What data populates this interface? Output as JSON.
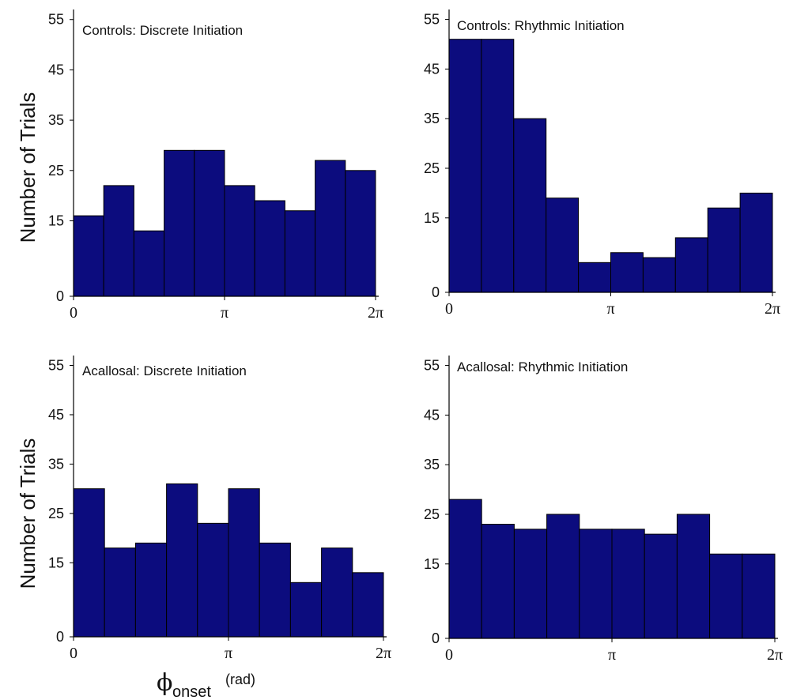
{
  "colors": {
    "bar_fill": "#0c0c7e",
    "bar_stroke": "#000000",
    "axis": "#000000"
  },
  "y_axis_label": "Number of Trials",
  "x_axis_label": {
    "symbol": "ϕ",
    "subscript": "onset",
    "unit": "(rad)"
  },
  "chart_data": [
    {
      "type": "bar",
      "title": "Controls: Discrete Initiation",
      "categories": [
        "1",
        "2",
        "3",
        "4",
        "5",
        "6",
        "7",
        "8",
        "9",
        "10"
      ],
      "values": [
        16,
        22,
        13,
        29,
        29,
        22,
        19,
        17,
        27,
        25
      ],
      "ylim": [
        0,
        55
      ],
      "yticks": [
        "0",
        "15",
        "25",
        "35",
        "45",
        "55"
      ],
      "xticks": [
        "0",
        "π",
        "2π"
      ],
      "xlim": [
        0,
        6.2832
      ]
    },
    {
      "type": "bar",
      "title": "Controls: Rhythmic Initiation",
      "categories": [
        "1",
        "2",
        "3",
        "4",
        "5",
        "6",
        "7",
        "8",
        "9",
        "10"
      ],
      "values": [
        51,
        51,
        35,
        19,
        6,
        8,
        7,
        11,
        17,
        20
      ],
      "ylim": [
        0,
        55
      ],
      "yticks": [
        "0",
        "15",
        "25",
        "35",
        "45",
        "55"
      ],
      "xticks": [
        "0",
        "π",
        "2π"
      ],
      "xlim": [
        0,
        6.2832
      ]
    },
    {
      "type": "bar",
      "title": "Acallosal: Discrete Initiation",
      "categories": [
        "1",
        "2",
        "3",
        "4",
        "5",
        "6",
        "7",
        "8",
        "9",
        "10"
      ],
      "values": [
        30,
        18,
        19,
        31,
        23,
        30,
        19,
        11,
        18,
        13
      ],
      "ylim": [
        0,
        55
      ],
      "yticks": [
        "0",
        "15",
        "25",
        "35",
        "45",
        "55"
      ],
      "xticks": [
        "0",
        "π",
        "2π"
      ],
      "xlim": [
        0,
        6.2832
      ]
    },
    {
      "type": "bar",
      "title": "Acallosal: Rhythmic Initiation",
      "categories": [
        "1",
        "2",
        "3",
        "4",
        "5",
        "6",
        "7",
        "8",
        "9",
        "10"
      ],
      "values": [
        28,
        23,
        22,
        25,
        22,
        22,
        21,
        25,
        17,
        17
      ],
      "ylim": [
        0,
        55
      ],
      "yticks": [
        "0",
        "15",
        "25",
        "35",
        "45",
        "55"
      ],
      "xticks": [
        "0",
        "π",
        "2π"
      ],
      "xlim": [
        0,
        6.2832
      ]
    }
  ]
}
